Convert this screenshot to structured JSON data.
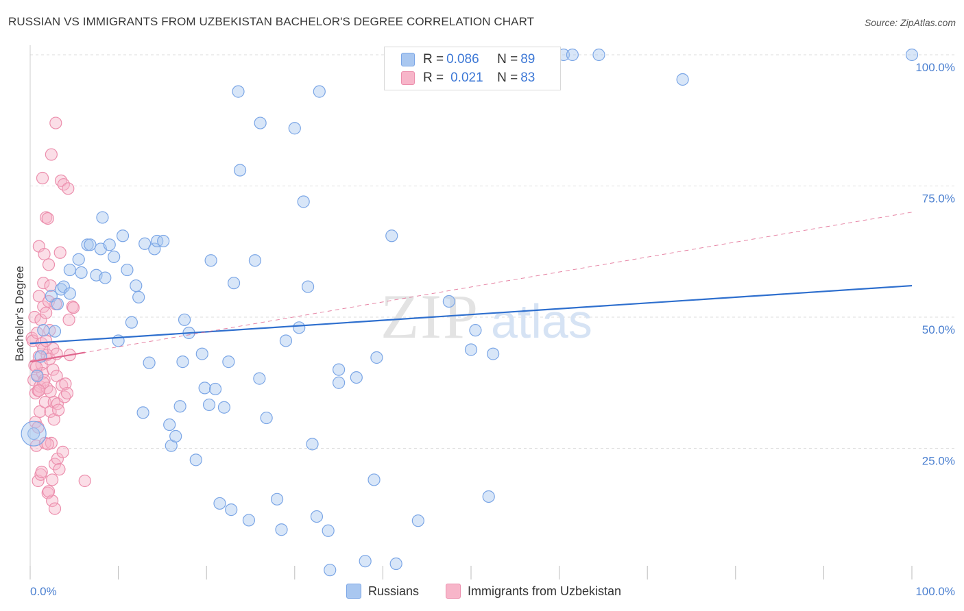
{
  "title": "RUSSIAN VS IMMIGRANTS FROM UZBEKISTAN BACHELOR'S DEGREE CORRELATION CHART",
  "source": "Source: ZipAtlas.com",
  "watermark": {
    "zip": "ZIP",
    "atlas": "atlas"
  },
  "colors": {
    "blue_fill": "#a9c7f0",
    "blue_stroke": "#7ba6e6",
    "blue_line": "#2e6fce",
    "pink_fill": "#f7b5c9",
    "pink_stroke": "#ec8fad",
    "pink_line": "#e0668e",
    "grid": "#dddddd",
    "tick_text": "#4a7fd0"
  },
  "legend_top": [
    {
      "r_key": "R = ",
      "r_val": "0.086",
      "n_key": "N = ",
      "n_val": "89",
      "color": "blue"
    },
    {
      "r_key": "R = ",
      "r_val": "0.021",
      "n_key": "N = ",
      "n_val": "83",
      "color": "pink"
    }
  ],
  "legend_bottom": [
    {
      "label": "Russians",
      "color": "blue"
    },
    {
      "label": "Immigrants from Uzbekistan",
      "color": "pink"
    }
  ],
  "chart_data": {
    "type": "scatter",
    "title": "RUSSIAN VS IMMIGRANTS FROM UZBEKISTAN BACHELOR'S DEGREE CORRELATION CHART",
    "xlabel": "",
    "ylabel": "Bachelor's Degree",
    "xlim": [
      0,
      100
    ],
    "ylim": [
      0,
      100
    ],
    "x_tick_labels": [
      "0.0%",
      "100.0%"
    ],
    "y_ticks": [
      25,
      50,
      75,
      100
    ],
    "y_tick_labels": [
      "25.0%",
      "50.0%",
      "75.0%",
      "100.0%"
    ],
    "grid": true,
    "series": [
      {
        "name": "Russians",
        "color": "blue",
        "trend": {
          "x": [
            0,
            100
          ],
          "y": [
            45.0,
            56.0
          ],
          "style": "solid"
        },
        "points": [
          [
            0.4,
            27.8
          ],
          [
            0.8,
            38.8
          ],
          [
            1.2,
            42.5
          ],
          [
            1.5,
            47.5
          ],
          [
            2.4,
            54.0
          ],
          [
            2.8,
            47.3
          ],
          [
            3.1,
            52.5
          ],
          [
            3.5,
            55.3
          ],
          [
            3.8,
            55.8
          ],
          [
            4.5,
            54.5
          ],
          [
            4.5,
            59.0
          ],
          [
            5.5,
            61.0
          ],
          [
            5.8,
            58.5
          ],
          [
            6.5,
            63.8
          ],
          [
            6.8,
            63.8
          ],
          [
            7.5,
            58.0
          ],
          [
            8.0,
            63.0
          ],
          [
            8.2,
            69.0
          ],
          [
            8.5,
            57.5
          ],
          [
            9.0,
            63.8
          ],
          [
            9.5,
            61.5
          ],
          [
            10.0,
            45.5
          ],
          [
            10.5,
            65.5
          ],
          [
            11.0,
            59.0
          ],
          [
            11.5,
            49.0
          ],
          [
            12.0,
            56.0
          ],
          [
            12.3,
            53.8
          ],
          [
            12.8,
            31.8
          ],
          [
            13.0,
            64.0
          ],
          [
            13.5,
            41.3
          ],
          [
            14.1,
            63.0
          ],
          [
            14.4,
            64.5
          ],
          [
            15.1,
            64.5
          ],
          [
            15.8,
            29.5
          ],
          [
            16.0,
            25.5
          ],
          [
            16.5,
            27.3
          ],
          [
            17.0,
            33.0
          ],
          [
            17.3,
            41.5
          ],
          [
            17.5,
            49.5
          ],
          [
            18.0,
            47.0
          ],
          [
            18.8,
            22.8
          ],
          [
            19.5,
            43.0
          ],
          [
            19.8,
            36.5
          ],
          [
            20.3,
            33.3
          ],
          [
            20.5,
            60.8
          ],
          [
            21.0,
            36.3
          ],
          [
            21.5,
            14.5
          ],
          [
            22.0,
            32.8
          ],
          [
            22.5,
            41.5
          ],
          [
            22.8,
            13.3
          ],
          [
            23.1,
            56.5
          ],
          [
            23.6,
            93.0
          ],
          [
            23.8,
            78.0
          ],
          [
            24.8,
            11.3
          ],
          [
            25.5,
            60.8
          ],
          [
            26.0,
            38.3
          ],
          [
            26.1,
            87.0
          ],
          [
            26.8,
            30.8
          ],
          [
            28.0,
            15.3
          ],
          [
            28.5,
            9.5
          ],
          [
            29.0,
            45.5
          ],
          [
            30.0,
            86.0
          ],
          [
            30.5,
            48.0
          ],
          [
            31.0,
            72.0
          ],
          [
            31.5,
            55.8
          ],
          [
            32.0,
            25.8
          ],
          [
            32.5,
            12.0
          ],
          [
            32.8,
            93.0
          ],
          [
            33.8,
            9.3
          ],
          [
            34.0,
            1.8
          ],
          [
            35.0,
            40.0
          ],
          [
            35.0,
            37.5
          ],
          [
            37.0,
            38.5
          ],
          [
            38.0,
            3.5
          ],
          [
            39.0,
            19.0
          ],
          [
            39.3,
            42.3
          ],
          [
            41.0,
            65.5
          ],
          [
            41.5,
            3.0
          ],
          [
            44.0,
            11.2
          ],
          [
            47.5,
            53.0
          ],
          [
            50.0,
            43.8
          ],
          [
            50.5,
            47.5
          ],
          [
            52.0,
            15.8
          ],
          [
            52.5,
            43.0
          ],
          [
            60.5,
            100.0
          ],
          [
            61.5,
            100.0
          ],
          [
            64.5,
            100.0
          ],
          [
            74.0,
            95.3
          ],
          [
            100.0,
            100.0
          ]
        ]
      },
      {
        "name": "Immigrants from Uzbekistan",
        "color": "pink",
        "trend": {
          "x": [
            0,
            100
          ],
          "y": [
            41.5,
            70.0
          ],
          "style": "dashed",
          "solid_x": [
            0,
            6.2
          ]
        },
        "points": [
          [
            0.2,
            46.0
          ],
          [
            0.3,
            45.5
          ],
          [
            0.4,
            38.0
          ],
          [
            0.5,
            50.0
          ],
          [
            0.5,
            40.8
          ],
          [
            0.6,
            35.5
          ],
          [
            0.6,
            30.0
          ],
          [
            0.7,
            25.5
          ],
          [
            0.8,
            47.0
          ],
          [
            0.8,
            39.0
          ],
          [
            0.9,
            36.0
          ],
          [
            0.9,
            18.8
          ],
          [
            1.0,
            63.5
          ],
          [
            1.0,
            54.0
          ],
          [
            1.0,
            42.5
          ],
          [
            1.1,
            36.8
          ],
          [
            1.1,
            32.0
          ],
          [
            1.2,
            20.0
          ],
          [
            1.2,
            49.5
          ],
          [
            1.3,
            45.0
          ],
          [
            1.3,
            41.0
          ],
          [
            1.4,
            39.3
          ],
          [
            1.4,
            76.5
          ],
          [
            1.5,
            56.5
          ],
          [
            1.5,
            52.0
          ],
          [
            1.5,
            44.0
          ],
          [
            1.6,
            62.0
          ],
          [
            1.6,
            38.0
          ],
          [
            1.7,
            33.8
          ],
          [
            1.7,
            26.0
          ],
          [
            1.8,
            69.0
          ],
          [
            1.8,
            50.8
          ],
          [
            1.8,
            45.5
          ],
          [
            1.9,
            42.8
          ],
          [
            1.9,
            36.5
          ],
          [
            2.0,
            16.5
          ],
          [
            2.0,
            68.8
          ],
          [
            2.1,
            60.0
          ],
          [
            2.1,
            53.0
          ],
          [
            2.2,
            47.5
          ],
          [
            2.2,
            42.0
          ],
          [
            2.3,
            35.8
          ],
          [
            2.3,
            32.0
          ],
          [
            2.4,
            81.0
          ],
          [
            2.4,
            26.0
          ],
          [
            2.5,
            19.0
          ],
          [
            2.5,
            15.0
          ],
          [
            2.6,
            44.0
          ],
          [
            2.6,
            40.0
          ],
          [
            2.7,
            33.8
          ],
          [
            2.7,
            30.5
          ],
          [
            2.8,
            22.0
          ],
          [
            2.8,
            13.5
          ],
          [
            2.9,
            87.0
          ],
          [
            2.9,
            52.5
          ],
          [
            3.0,
            43.0
          ],
          [
            3.0,
            38.8
          ],
          [
            3.1,
            33.5
          ],
          [
            3.1,
            23.0
          ],
          [
            3.2,
            32.3
          ],
          [
            3.3,
            21.0
          ],
          [
            3.4,
            62.3
          ],
          [
            3.5,
            76.0
          ],
          [
            3.6,
            37.0
          ],
          [
            3.7,
            24.3
          ],
          [
            3.8,
            75.3
          ],
          [
            3.9,
            34.8
          ],
          [
            4.0,
            37.3
          ],
          [
            4.2,
            35.5
          ],
          [
            4.3,
            74.5
          ],
          [
            4.4,
            49.5
          ],
          [
            4.5,
            42.8
          ],
          [
            4.8,
            52.0
          ],
          [
            4.9,
            51.8
          ],
          [
            6.2,
            18.8
          ],
          [
            1.5,
            37.5
          ],
          [
            0.9,
            29.0
          ],
          [
            2.1,
            16.8
          ],
          [
            1.0,
            36.0
          ],
          [
            0.7,
            40.5
          ],
          [
            1.3,
            20.5
          ],
          [
            2.0,
            25.8
          ],
          [
            2.3,
            56.0
          ]
        ]
      }
    ]
  }
}
